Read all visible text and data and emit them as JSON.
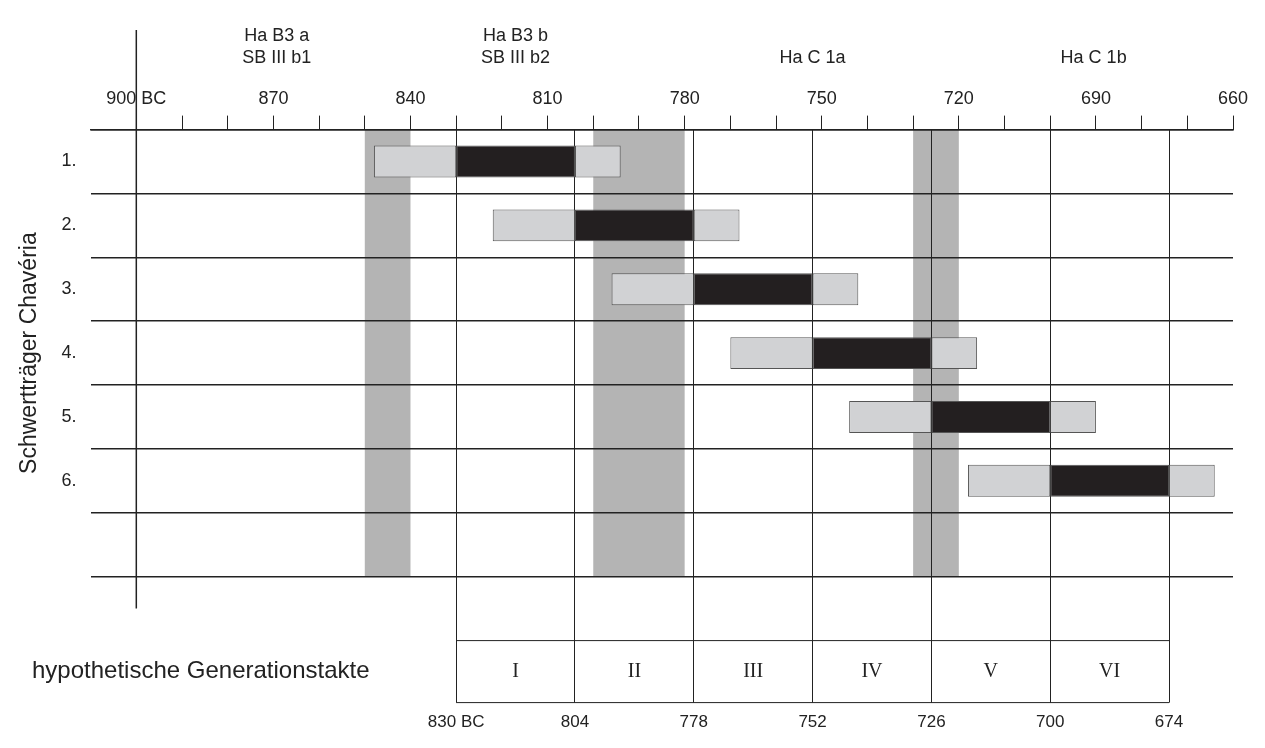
{
  "chart_data": {
    "type": "bar",
    "orientation": "horizontal",
    "ylabel": "Schwertträger Chavéria",
    "categories": [
      "1.",
      "2.",
      "3.",
      "4.",
      "5.",
      "6.",
      null
    ],
    "series": [
      {
        "color": "#d1d2d4",
        "base": [
          848,
          822,
          796,
          770,
          744,
          718,
          null
        ],
        "values": [
          -18,
          -18,
          -18,
          -18,
          -18,
          -18,
          null
        ]
      },
      {
        "color": "#231f20",
        "base": [
          830,
          804,
          778,
          752,
          726,
          700,
          null
        ],
        "values": [
          -26,
          -26,
          -26,
          -26,
          -26,
          -26,
          null
        ]
      },
      {
        "color": "#d1d2d4",
        "base": [
          804,
          778,
          752,
          726,
          700,
          674,
          null
        ],
        "values": [
          -10,
          -10,
          -10,
          -10,
          -10,
          -10,
          null
        ]
      }
    ],
    "x2lim": [
      910,
      660
    ],
    "x2ticks": [
      {
        "value": 900,
        "label": "900 BC"
      },
      {
        "value": 890,
        "label": null
      },
      {
        "value": 880,
        "label": null
      },
      870,
      {
        "value": 860,
        "label": null
      },
      {
        "value": 850,
        "label": null
      },
      840,
      {
        "value": 830,
        "label": null
      },
      {
        "value": 820,
        "label": null
      },
      810,
      {
        "value": 800,
        "label": null
      },
      {
        "value": 790,
        "label": null
      },
      780,
      {
        "value": 770,
        "label": null
      },
      {
        "value": 760,
        "label": null
      },
      750,
      {
        "value": 740,
        "label": null
      },
      {
        "value": 730,
        "label": null
      },
      720,
      {
        "value": 710,
        "label": null
      },
      {
        "value": 700,
        "label": null
      },
      690,
      {
        "value": 680,
        "label": null
      },
      {
        "value": 670,
        "label": null
      },
      660
    ],
    "xlim": [
      910,
      660
    ],
    "xticks": [
      {
        "value": 830,
        "label": "830 BC"
      },
      804,
      778,
      752,
      726,
      700,
      674
    ],
    "bands": [
      {
        "axis": "x",
        "from": 850,
        "to": 840,
        "color": "#b4b4b4"
      },
      {
        "axis": "x",
        "from": 800,
        "to": 780,
        "color": "#b4b4b4"
      },
      {
        "axis": "x",
        "from": 730,
        "to": 720,
        "color": "#b4b4b4"
      }
    ],
    "ref_lines": [
      {
        "axis": "x",
        "value": 900,
        "color": "#222222"
      }
    ],
    "annotations": [
      "Ha B3 a\nSB III b1",
      "Ha B3 b\nSB III b2",
      "Ha C 1a",
      "Ha C 1b",
      "hypothetische Generationstakte",
      "I",
      "II",
      "III",
      "IV",
      "V",
      "VI"
    ],
    "grid": true,
    "legend": false
  }
}
